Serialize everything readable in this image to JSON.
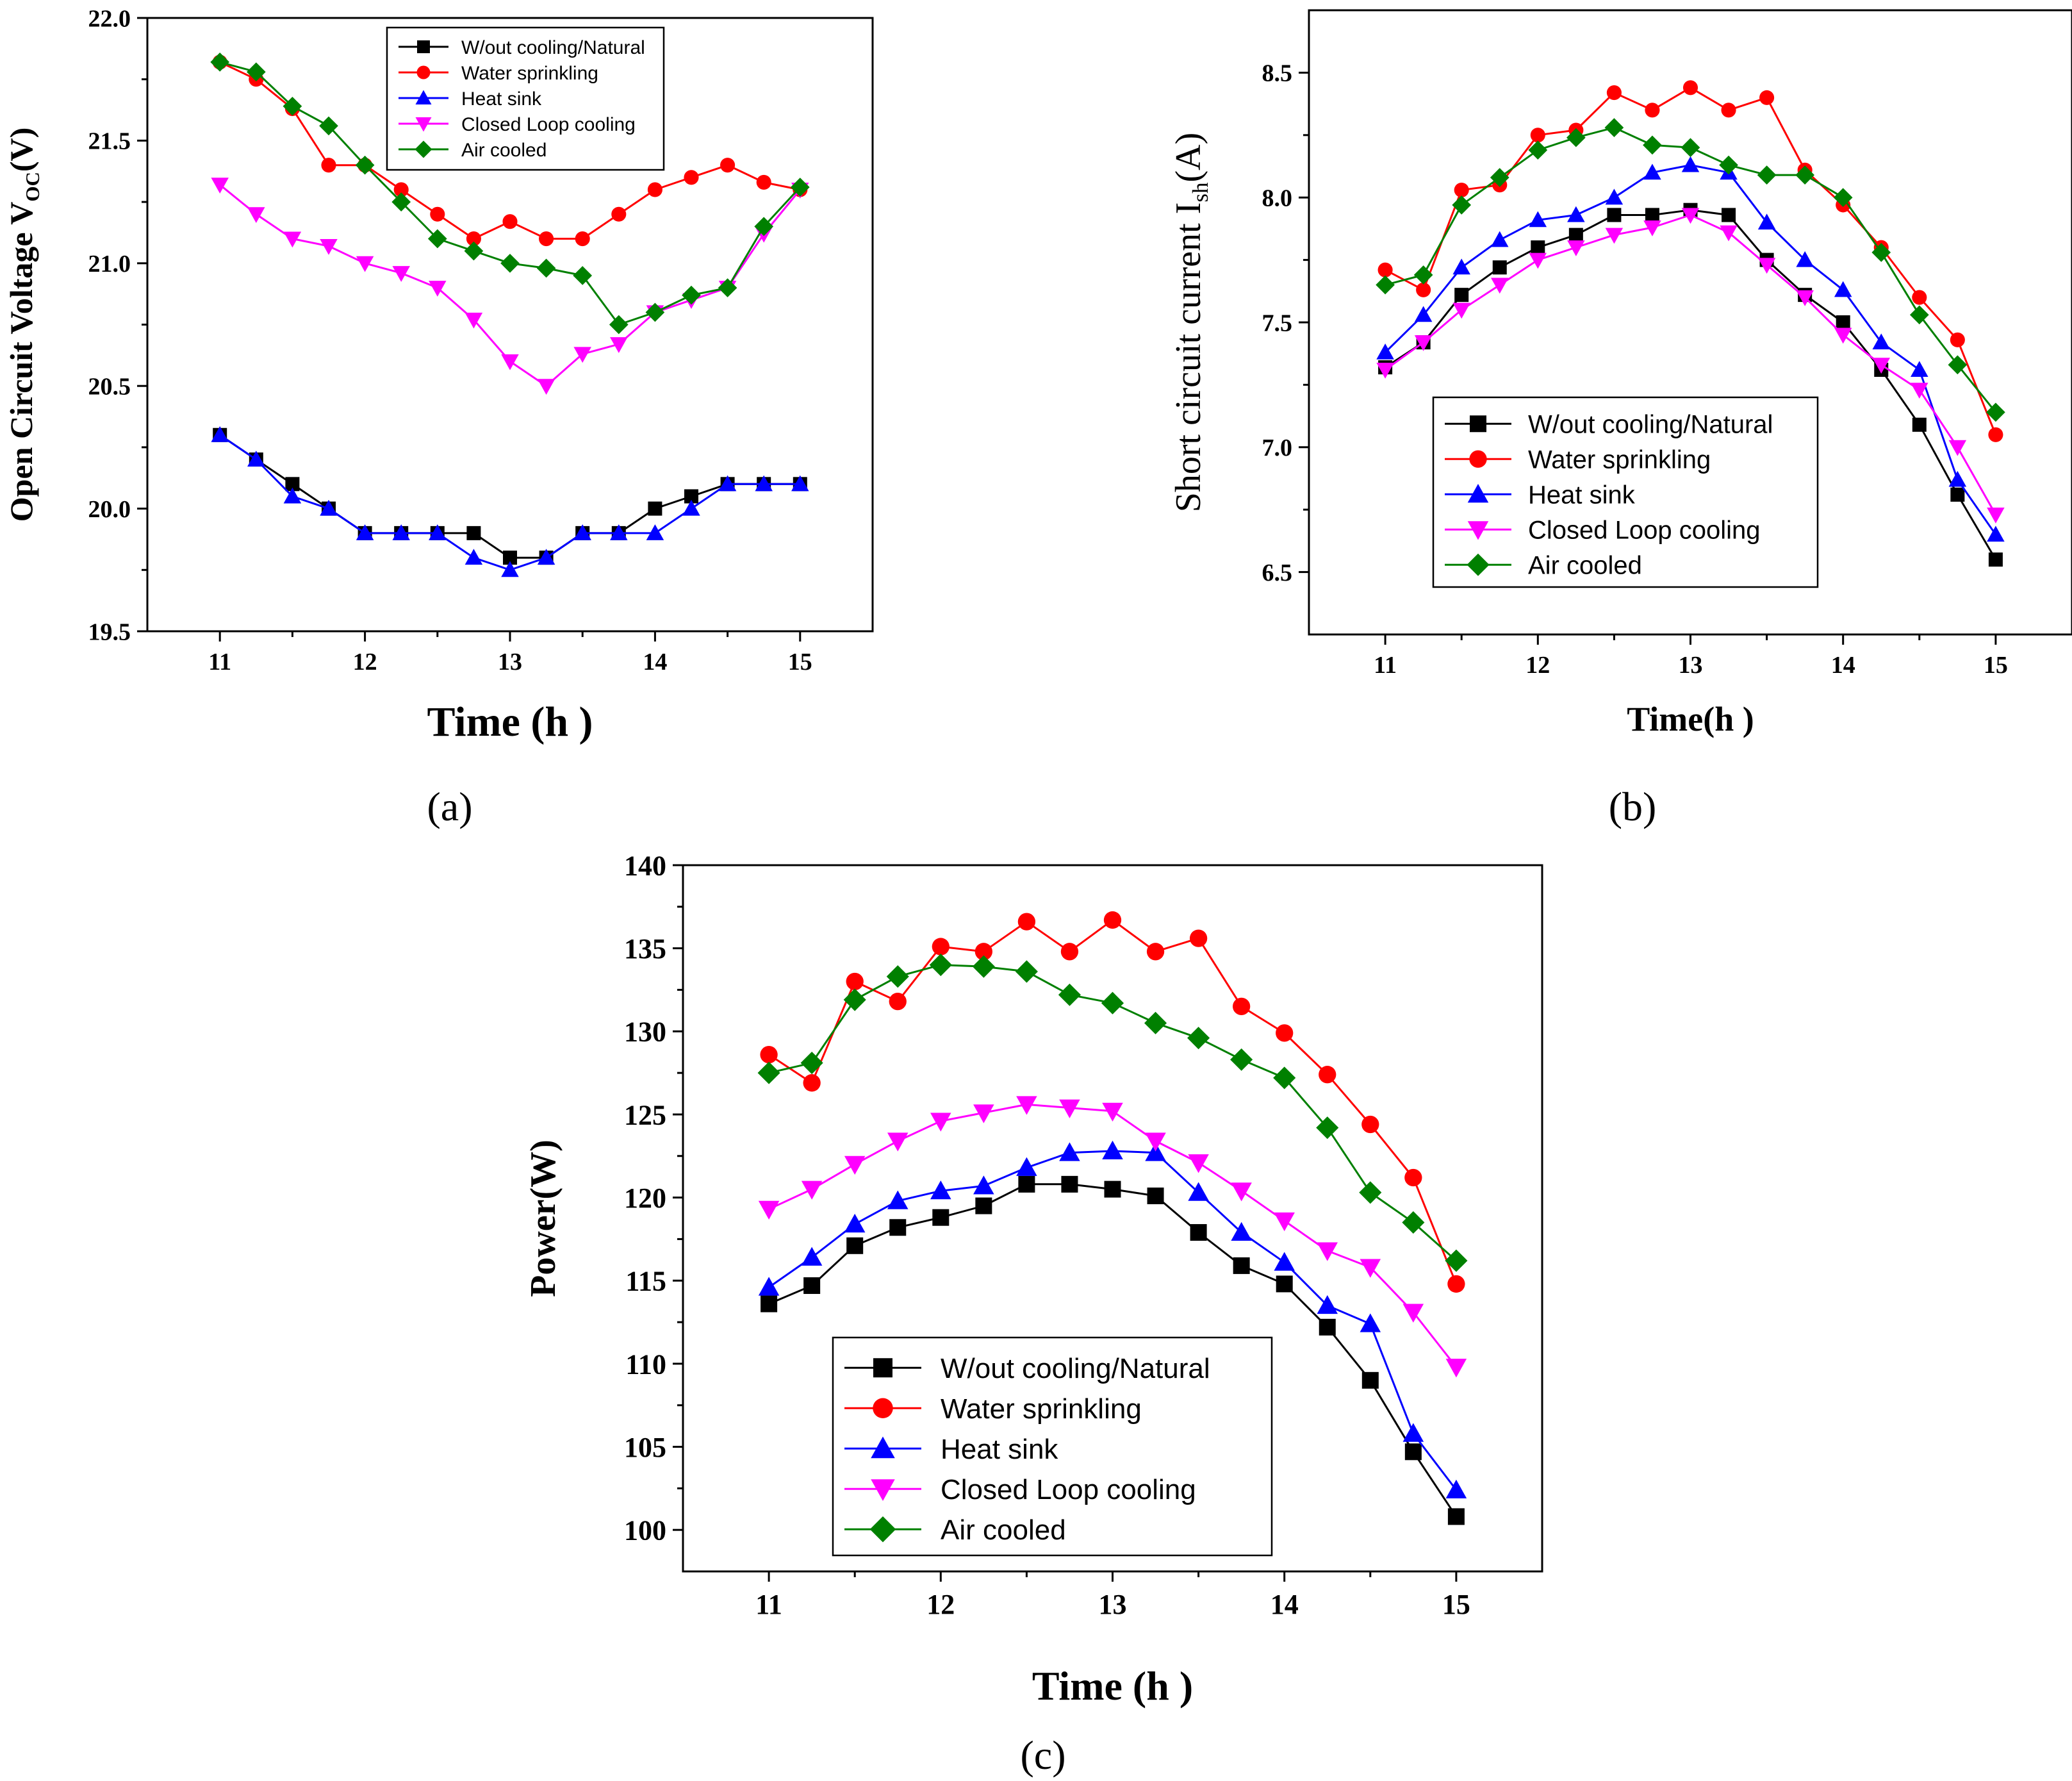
{
  "chart_data": [
    {
      "type": "line",
      "panel": "a",
      "caption": "(a)",
      "ylabel_main": "Open Circuit Voltage V",
      "ylabel_sub": "OC",
      "ylabel_tail": "(V)",
      "xlabel": "Time (h )",
      "xlim": [
        10.5,
        15.5
      ],
      "ylim": [
        19.5,
        22.0
      ],
      "xticks": [
        11,
        12,
        13,
        14,
        15
      ],
      "yticks": [
        19.5,
        20.0,
        20.5,
        21.0,
        21.5,
        22.0
      ],
      "ytick_decimals": 1,
      "legend_position": "top-center",
      "x": [
        11,
        11.25,
        11.5,
        11.75,
        12,
        12.25,
        12.5,
        12.75,
        13,
        13.25,
        13.5,
        13.75,
        14,
        14.25,
        14.5,
        14.75,
        15
      ],
      "series": [
        {
          "name": "W/out cooling/Natural",
          "marker": "square",
          "color": "#000000",
          "values": [
            20.3,
            20.2,
            20.1,
            20.0,
            19.9,
            19.9,
            19.9,
            19.9,
            19.8,
            19.8,
            19.9,
            19.9,
            20.0,
            20.05,
            20.1,
            20.1,
            20.1
          ]
        },
        {
          "name": "Water sprinkling",
          "marker": "circle",
          "color": "#ff0000",
          "values": [
            21.82,
            21.75,
            21.63,
            21.4,
            21.4,
            21.3,
            21.2,
            21.1,
            21.17,
            21.1,
            21.1,
            21.2,
            21.3,
            21.35,
            21.4,
            21.33,
            21.3
          ]
        },
        {
          "name": "Heat sink",
          "marker": "triangle-up",
          "color": "#0000ff",
          "values": [
            20.3,
            20.2,
            20.05,
            20.0,
            19.9,
            19.9,
            19.9,
            19.8,
            19.75,
            19.8,
            19.9,
            19.9,
            19.9,
            20.0,
            20.1,
            20.1,
            20.1
          ]
        },
        {
          "name": "Closed Loop cooling",
          "marker": "triangle-down",
          "color": "#ff00ff",
          "values": [
            21.32,
            21.2,
            21.1,
            21.07,
            21.0,
            20.96,
            20.9,
            20.77,
            20.6,
            20.5,
            20.63,
            20.67,
            20.8,
            20.85,
            20.9,
            21.12,
            21.3
          ]
        },
        {
          "name": "Air cooled",
          "marker": "diamond",
          "color": "#008000",
          "values": [
            21.82,
            21.78,
            21.64,
            21.56,
            21.4,
            21.25,
            21.1,
            21.05,
            21.0,
            20.98,
            20.95,
            20.75,
            20.8,
            20.87,
            20.9,
            21.15,
            21.31
          ]
        }
      ]
    },
    {
      "type": "line",
      "panel": "b",
      "caption": "(b)",
      "ylabel_main": "Short circuit current I",
      "ylabel_sub": "sh",
      "ylabel_tail": "(A)",
      "xlabel": "Time(h )",
      "xlim": [
        10.5,
        15.5
      ],
      "ylim": [
        6.25,
        8.75
      ],
      "xticks": [
        11,
        12,
        13,
        14,
        15
      ],
      "yticks": [
        6.5,
        7.0,
        7.5,
        8.0,
        8.5
      ],
      "ytick_decimals": 1,
      "legend_position": "bottom-left",
      "x": [
        11,
        11.25,
        11.5,
        11.75,
        12,
        12.25,
        12.5,
        12.75,
        13,
        13.25,
        13.5,
        13.75,
        14,
        14.25,
        14.5,
        14.75,
        15
      ],
      "series": [
        {
          "name": "W/out cooling/Natural",
          "marker": "square",
          "color": "#000000",
          "values": [
            7.32,
            7.42,
            7.61,
            7.72,
            7.8,
            7.85,
            7.93,
            7.93,
            7.95,
            7.93,
            7.75,
            7.61,
            7.5,
            7.31,
            7.09,
            6.81,
            6.55
          ]
        },
        {
          "name": "Water sprinkling",
          "marker": "circle",
          "color": "#ff0000",
          "values": [
            7.71,
            7.63,
            8.03,
            8.05,
            8.25,
            8.27,
            8.42,
            8.35,
            8.44,
            8.35,
            8.4,
            8.11,
            7.97,
            7.8,
            7.6,
            7.43,
            7.05
          ]
        },
        {
          "name": "Heat sink",
          "marker": "triangle-up",
          "color": "#0000ff",
          "values": [
            7.38,
            7.53,
            7.72,
            7.83,
            7.91,
            7.93,
            8.0,
            8.1,
            8.13,
            8.1,
            7.9,
            7.75,
            7.63,
            7.42,
            7.31,
            6.87,
            6.65
          ]
        },
        {
          "name": "Closed Loop cooling",
          "marker": "triangle-down",
          "color": "#ff00ff",
          "values": [
            7.31,
            7.42,
            7.55,
            7.65,
            7.75,
            7.8,
            7.85,
            7.88,
            7.93,
            7.86,
            7.73,
            7.6,
            7.45,
            7.33,
            7.23,
            7.0,
            6.73
          ]
        },
        {
          "name": "Air cooled",
          "marker": "diamond",
          "color": "#008000",
          "values": [
            7.65,
            7.69,
            7.97,
            8.08,
            8.19,
            8.24,
            8.28,
            8.21,
            8.2,
            8.13,
            8.09,
            8.09,
            8.0,
            7.78,
            7.53,
            7.33,
            7.14
          ]
        }
      ]
    },
    {
      "type": "line",
      "panel": "c",
      "caption": "(c)",
      "ylabel_main": "Power(W)",
      "ylabel_sub": "",
      "ylabel_tail": "",
      "xlabel": "Time (h )",
      "xlim": [
        10.5,
        15.5
      ],
      "ylim": [
        97.5,
        140
      ],
      "xticks": [
        11,
        12,
        13,
        14,
        15
      ],
      "yticks": [
        100,
        105,
        110,
        115,
        120,
        125,
        130,
        135,
        140
      ],
      "ytick_decimals": 0,
      "legend_position": "bottom-left",
      "x": [
        11,
        11.25,
        11.5,
        11.75,
        12,
        12.25,
        12.5,
        12.75,
        13,
        13.25,
        13.5,
        13.75,
        14,
        14.25,
        14.5,
        14.75,
        15
      ],
      "series": [
        {
          "name": "W/out cooling/Natural",
          "marker": "square",
          "color": "#000000",
          "values": [
            113.6,
            114.7,
            117.1,
            118.2,
            118.8,
            119.5,
            120.8,
            120.8,
            120.5,
            120.1,
            117.9,
            115.9,
            114.8,
            112.2,
            109.0,
            104.7,
            100.8
          ]
        },
        {
          "name": "Water sprinkling",
          "marker": "circle",
          "color": "#ff0000",
          "values": [
            128.6,
            126.9,
            133.0,
            131.8,
            135.1,
            134.8,
            136.6,
            134.8,
            136.7,
            134.8,
            135.6,
            131.5,
            129.9,
            127.4,
            124.4,
            121.2,
            114.8
          ]
        },
        {
          "name": "Heat sink",
          "marker": "triangle-up",
          "color": "#0000ff",
          "values": [
            114.6,
            116.4,
            118.4,
            119.8,
            120.4,
            120.7,
            121.8,
            122.7,
            122.8,
            122.7,
            120.3,
            117.9,
            116.1,
            113.5,
            112.4,
            105.8,
            102.4
          ]
        },
        {
          "name": "Closed Loop cooling",
          "marker": "triangle-down",
          "color": "#ff00ff",
          "values": [
            119.3,
            120.5,
            122.0,
            123.4,
            124.6,
            125.1,
            125.6,
            125.4,
            125.2,
            123.4,
            122.1,
            120.4,
            118.6,
            116.8,
            115.8,
            113.1,
            109.8
          ]
        },
        {
          "name": "Air cooled",
          "marker": "diamond",
          "color": "#008000",
          "values": [
            127.5,
            128.1,
            131.9,
            133.3,
            134.0,
            133.9,
            133.6,
            132.2,
            131.7,
            130.5,
            129.6,
            128.3,
            127.2,
            124.2,
            120.3,
            118.5,
            116.2
          ]
        }
      ]
    }
  ]
}
